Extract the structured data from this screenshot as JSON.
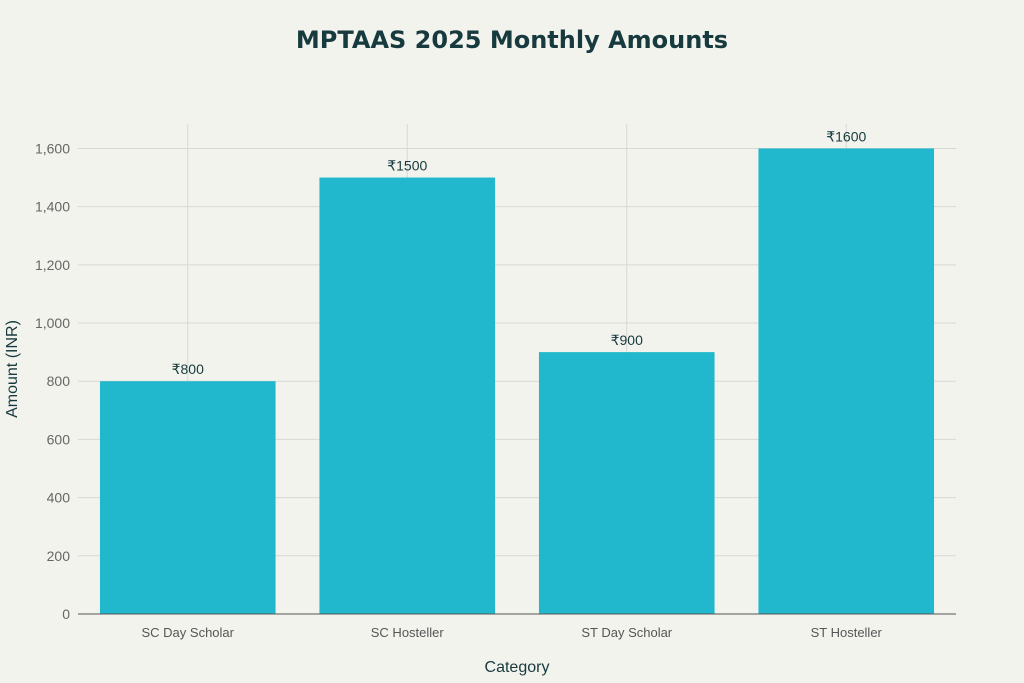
{
  "chart_data": {
    "type": "bar",
    "title": "MPTAAS 2025 Monthly Amounts",
    "xlabel": "Category",
    "ylabel": "Amount (INR)",
    "categories": [
      "SC Day Scholar",
      "SC Hosteller",
      "ST Day Scholar",
      "ST Hosteller"
    ],
    "values": [
      800,
      1500,
      900,
      1600
    ],
    "data_labels": [
      "₹800",
      "₹1500",
      "₹900",
      "₹1600"
    ],
    "yticks": [
      0,
      200,
      400,
      600,
      800,
      1000,
      1200,
      1400,
      1600
    ],
    "ytick_labels": [
      "0",
      "200",
      "400",
      "600",
      "800",
      "1,000",
      "1,200",
      "1,400",
      "1,600"
    ],
    "ylim": [
      0,
      1684
    ],
    "grid": true,
    "colors": {
      "bar": "#21b8cd",
      "background": "#f3f3ee",
      "title": "#163a3d",
      "grid": "#d8d8d3"
    }
  }
}
